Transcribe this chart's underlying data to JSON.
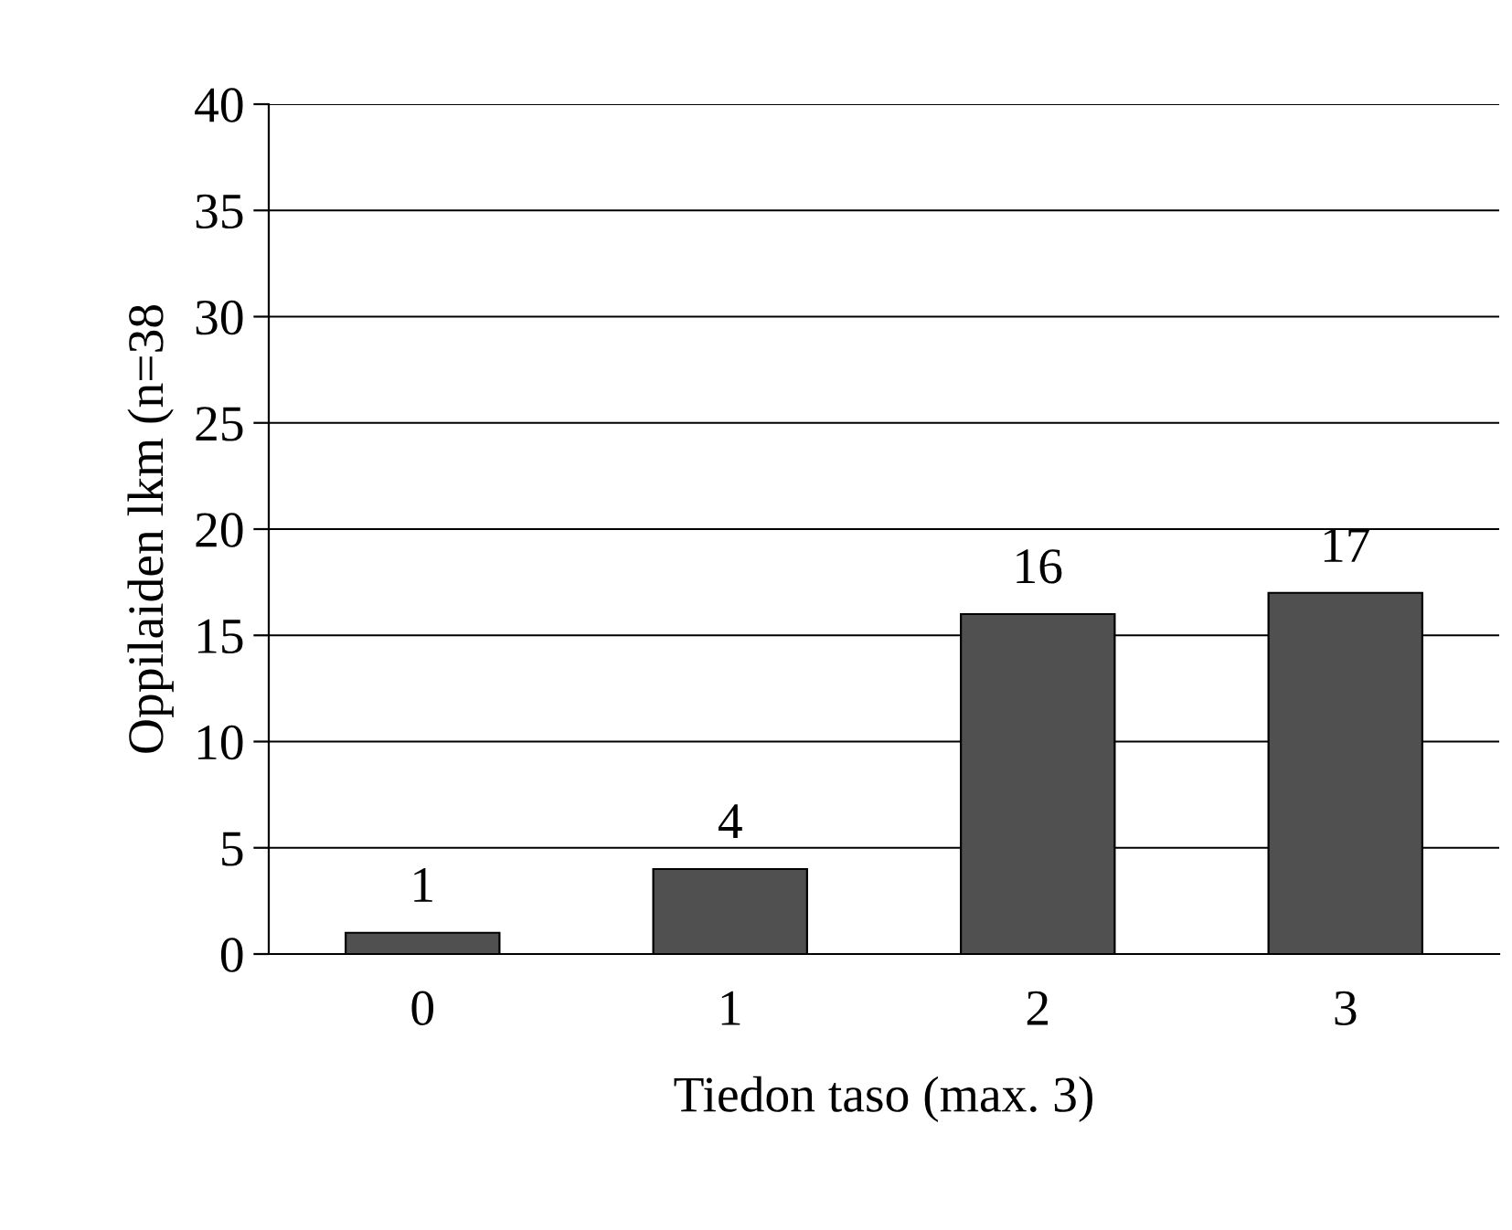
{
  "chart_data": {
    "type": "bar",
    "xlabel": "Tiedon taso (max. 3)",
    "ylabel": "Oppilaiden lkm (n=38",
    "categories": [
      "0",
      "1",
      "2",
      "3"
    ],
    "values": [
      1,
      4,
      16,
      17
    ],
    "color": "#505050",
    "ylim": [
      0,
      40
    ],
    "yticks": [
      0,
      5,
      10,
      15,
      20,
      25,
      30,
      35,
      40
    ],
    "grid": "y",
    "data_labels": true
  }
}
